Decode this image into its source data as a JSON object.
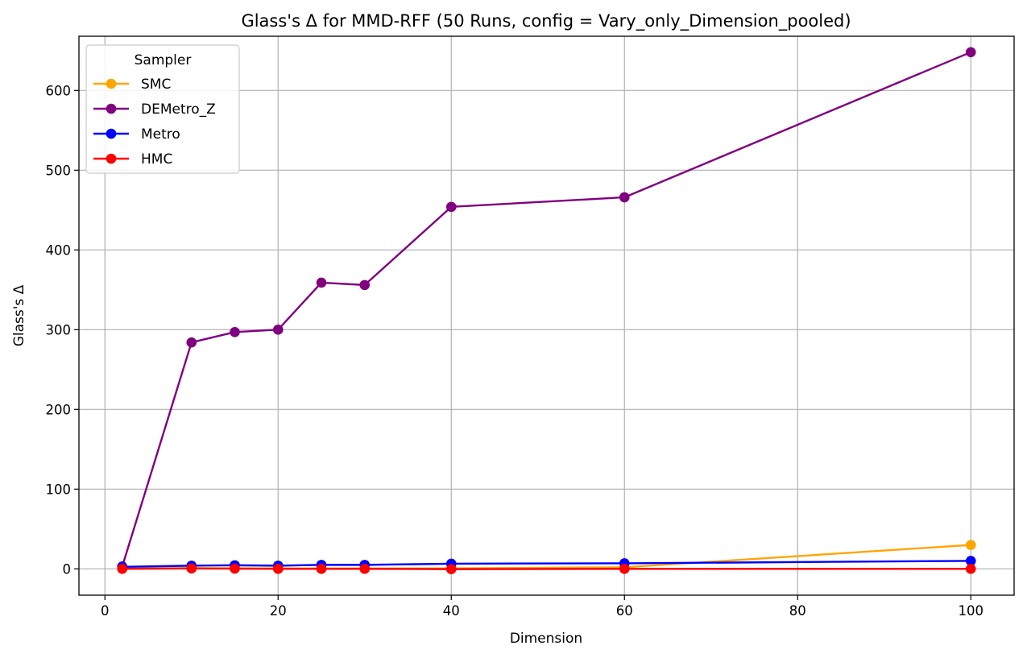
{
  "chart_data": {
    "type": "line",
    "title": "Glass's Δ for MMD-RFF (50 Runs, config = Vary_only_Dimension_pooled)",
    "xlabel": "Dimension",
    "ylabel": "Glass's Δ",
    "x": [
      2,
      10,
      15,
      20,
      25,
      30,
      40,
      60,
      100
    ],
    "xlim": [
      -3,
      105
    ],
    "ylim": [
      -33,
      668
    ],
    "xticks": [
      0,
      20,
      40,
      60,
      80,
      100
    ],
    "yticks": [
      0,
      100,
      200,
      300,
      400,
      500,
      600
    ],
    "grid": true,
    "legend": {
      "title": "Sampler",
      "position": "top-left"
    },
    "series": [
      {
        "name": "SMC",
        "color": "#FFA500",
        "values": [
          0.5,
          1.0,
          0.8,
          0.6,
          0.5,
          0.5,
          0.6,
          2.0,
          30.0
        ]
      },
      {
        "name": "DEMetro_Z",
        "color": "#800080",
        "values": [
          3.0,
          284.0,
          297.0,
          300.0,
          359.0,
          356.0,
          454.0,
          466.0,
          648.0
        ]
      },
      {
        "name": "Metro",
        "color": "#0000FF",
        "values": [
          2.5,
          4.0,
          4.5,
          4.0,
          5.0,
          5.0,
          6.5,
          7.0,
          10.0
        ]
      },
      {
        "name": "HMC",
        "color": "#FF0000",
        "values": [
          0.0,
          0.5,
          0.3,
          0.0,
          0.0,
          0.0,
          -0.3,
          0.0,
          0.0
        ]
      }
    ]
  }
}
